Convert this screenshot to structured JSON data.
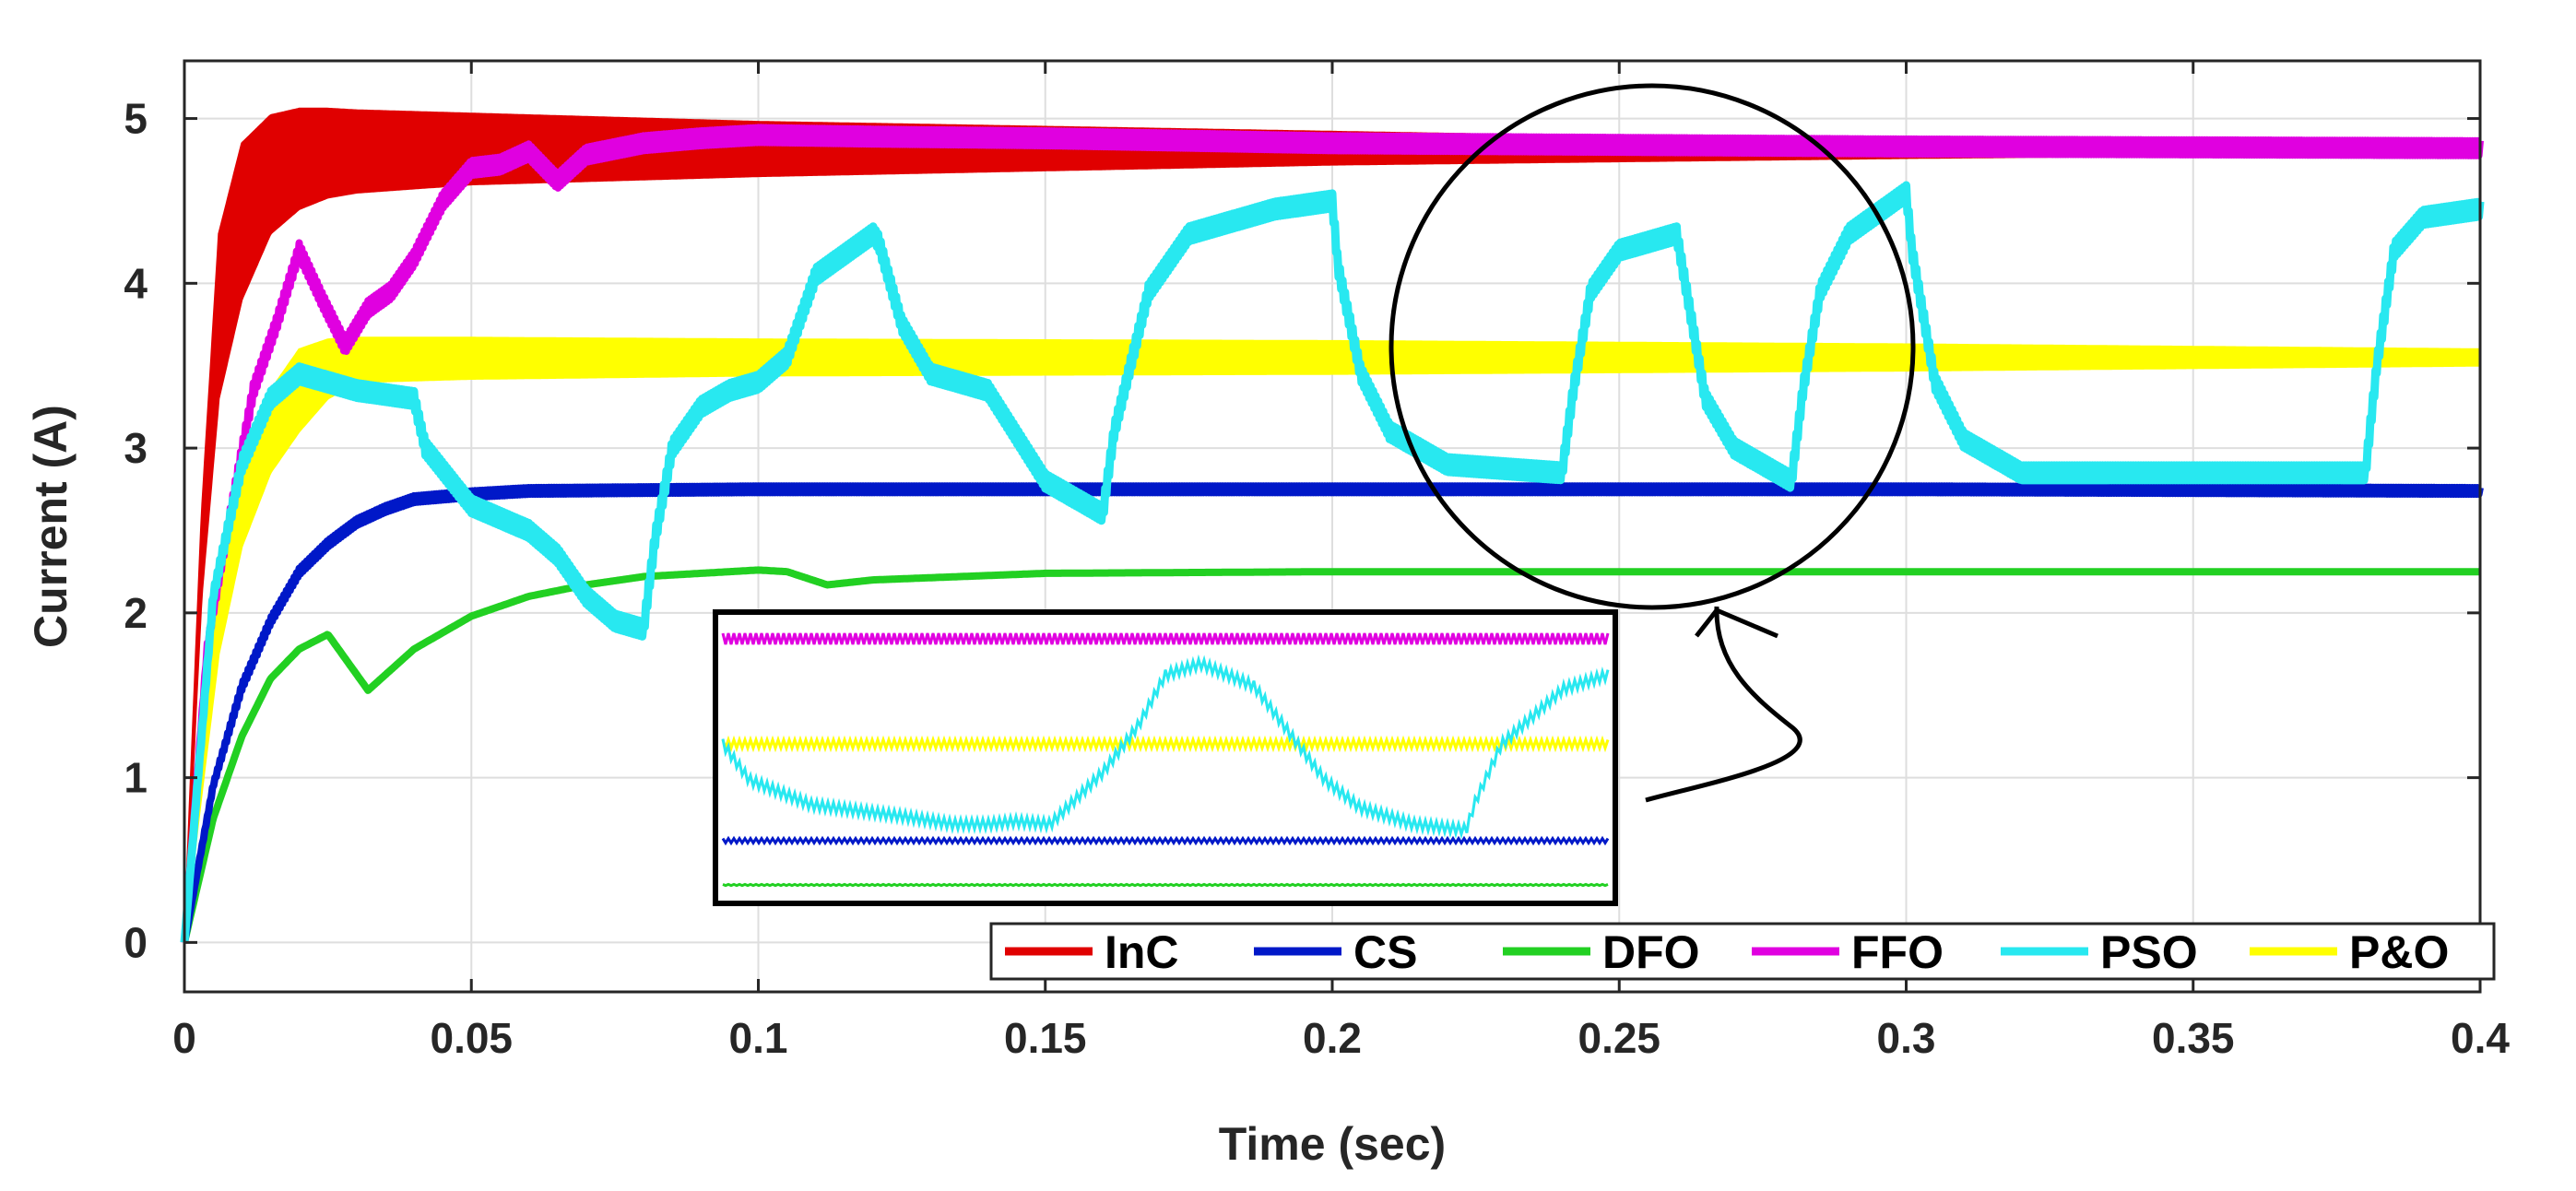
{
  "chart_data": {
    "type": "line",
    "title": "",
    "xlabel": "Time (sec)",
    "ylabel": "Current (A)",
    "xlim": [
      0,
      0.4
    ],
    "ylim": [
      -0.3,
      5.35
    ],
    "xticks": [
      0,
      0.05,
      0.1,
      0.15,
      0.2,
      0.25,
      0.3,
      0.35,
      0.4
    ],
    "xtick_labels": [
      "0",
      "0.05",
      "0.1",
      "0.15",
      "0.2",
      "0.25",
      "0.3",
      "0.35",
      "0.4"
    ],
    "yticks": [
      0,
      1,
      2,
      3,
      4,
      5
    ],
    "ytick_labels": [
      "0",
      "1",
      "2",
      "3",
      "4",
      "5"
    ],
    "grid": true,
    "legend_position": "bottom-right",
    "series": [
      {
        "name": "InC",
        "color": "#e00000",
        "band": true,
        "x": [
          0,
          0.003,
          0.006,
          0.01,
          0.015,
          0.02,
          0.025,
          0.03,
          0.05,
          0.1,
          0.2,
          0.3,
          0.4
        ],
        "upper": [
          0.05,
          2.6,
          4.3,
          4.85,
          5.02,
          5.06,
          5.06,
          5.05,
          5.03,
          4.98,
          4.92,
          4.86,
          4.83
        ],
        "lower": [
          0.0,
          2.1,
          3.3,
          3.9,
          4.3,
          4.45,
          4.52,
          4.55,
          4.6,
          4.65,
          4.72,
          4.76,
          4.79
        ]
      },
      {
        "name": "CS",
        "color": "#0018c8",
        "band": false,
        "x": [
          0,
          0.005,
          0.01,
          0.015,
          0.02,
          0.025,
          0.03,
          0.035,
          0.04,
          0.05,
          0.06,
          0.1,
          0.2,
          0.3,
          0.4
        ],
        "y": [
          0.0,
          0.95,
          1.55,
          1.95,
          2.25,
          2.42,
          2.55,
          2.63,
          2.69,
          2.72,
          2.74,
          2.75,
          2.75,
          2.75,
          2.74
        ]
      },
      {
        "name": "DFO",
        "color": "#22d022",
        "band": false,
        "x": [
          0,
          0.005,
          0.01,
          0.015,
          0.02,
          0.025,
          0.032,
          0.04,
          0.05,
          0.06,
          0.07,
          0.08,
          0.1,
          0.105,
          0.112,
          0.12,
          0.15,
          0.2,
          0.3,
          0.4
        ],
        "y": [
          0.0,
          0.75,
          1.25,
          1.6,
          1.78,
          1.87,
          1.53,
          1.78,
          1.98,
          2.1,
          2.17,
          2.22,
          2.26,
          2.25,
          2.17,
          2.2,
          2.24,
          2.25,
          2.25,
          2.25
        ]
      },
      {
        "name": "FFO",
        "color": "#e000e0",
        "band": false,
        "x": [
          0,
          0.004,
          0.008,
          0.012,
          0.016,
          0.02,
          0.024,
          0.028,
          0.032,
          0.036,
          0.04,
          0.045,
          0.05,
          0.055,
          0.06,
          0.065,
          0.07,
          0.08,
          0.09,
          0.1,
          0.12,
          0.15,
          0.2,
          0.3,
          0.4
        ],
        "y": [
          0.0,
          1.8,
          2.6,
          3.35,
          3.75,
          4.2,
          3.9,
          3.62,
          3.85,
          3.95,
          4.15,
          4.5,
          4.7,
          4.72,
          4.8,
          4.62,
          4.78,
          4.85,
          4.88,
          4.9,
          4.89,
          4.88,
          4.85,
          4.83,
          4.82
        ]
      },
      {
        "name": "PSO",
        "color": "#28e8f0",
        "band": false,
        "x": [
          0,
          0.005,
          0.01,
          0.015,
          0.02,
          0.025,
          0.03,
          0.04,
          0.042,
          0.05,
          0.06,
          0.065,
          0.07,
          0.075,
          0.08,
          0.082,
          0.085,
          0.09,
          0.095,
          0.1,
          0.105,
          0.11,
          0.12,
          0.121,
          0.125,
          0.13,
          0.14,
          0.15,
          0.16,
          0.162,
          0.168,
          0.175,
          0.19,
          0.2,
          0.201,
          0.205,
          0.21,
          0.22,
          0.24,
          0.242,
          0.245,
          0.25,
          0.26,
          0.262,
          0.265,
          0.27,
          0.28,
          0.282,
          0.285,
          0.29,
          0.3,
          0.301,
          0.305,
          0.31,
          0.32,
          0.38,
          0.382,
          0.385,
          0.39,
          0.4
        ],
        "y": [
          0.0,
          2.1,
          2.9,
          3.3,
          3.45,
          3.4,
          3.35,
          3.3,
          3.0,
          2.65,
          2.5,
          2.35,
          2.1,
          1.95,
          1.9,
          2.45,
          3.0,
          3.25,
          3.35,
          3.4,
          3.55,
          4.05,
          4.3,
          4.25,
          3.75,
          3.45,
          3.35,
          2.8,
          2.6,
          3.1,
          3.95,
          4.3,
          4.45,
          4.5,
          4.1,
          3.45,
          3.1,
          2.9,
          2.85,
          3.35,
          3.95,
          4.2,
          4.3,
          3.9,
          3.3,
          3.0,
          2.8,
          3.35,
          3.95,
          4.3,
          4.55,
          4.2,
          3.4,
          3.05,
          2.85,
          2.85,
          3.5,
          4.2,
          4.4,
          4.45
        ]
      },
      {
        "name": "P&O",
        "color": "#ffff00",
        "band": true,
        "x": [
          0,
          0.003,
          0.006,
          0.01,
          0.015,
          0.02,
          0.025,
          0.03,
          0.05,
          0.1,
          0.2,
          0.3,
          0.4
        ],
        "upper": [
          0.05,
          1.2,
          2.2,
          2.9,
          3.35,
          3.6,
          3.66,
          3.67,
          3.67,
          3.66,
          3.65,
          3.63,
          3.6
        ],
        "lower": [
          0.0,
          0.9,
          1.75,
          2.4,
          2.85,
          3.1,
          3.3,
          3.4,
          3.42,
          3.44,
          3.45,
          3.47,
          3.5
        ]
      }
    ],
    "annotations": {
      "zoom_circle": {
        "center_x": 0.25,
        "center_y": 3.7,
        "shape": "ellipse"
      },
      "inset": {
        "description": "zoomed view of 0.22-0.30 s region"
      },
      "arrow": "from circle to inset"
    },
    "inset_series": [
      {
        "name": "FFO",
        "color": "#e000e0",
        "level": 0.93,
        "ripple": 0.02
      },
      {
        "name": "P&O",
        "color": "#ffff00",
        "level": 0.55,
        "ripple": 0.015
      },
      {
        "name": "CS",
        "color": "#0018c8",
        "level": 0.2,
        "ripple": 0.008
      },
      {
        "name": "DFO",
        "color": "#22d022",
        "level": 0.04,
        "ripple": 0.002
      },
      {
        "name": "PSO",
        "color": "#28e8f0",
        "x": [
          0,
          0.03,
          0.1,
          0.2,
          0.24,
          0.26,
          0.3,
          0.33,
          0.37,
          0.43,
          0.47,
          0.5,
          0.54,
          0.6,
          0.68,
          0.72,
          0.78,
          0.84,
          0.85,
          0.88,
          0.95,
          1.0
        ],
        "y": [
          0.55,
          0.42,
          0.33,
          0.29,
          0.27,
          0.26,
          0.26,
          0.27,
          0.26,
          0.45,
          0.62,
          0.8,
          0.84,
          0.76,
          0.42,
          0.32,
          0.26,
          0.24,
          0.34,
          0.55,
          0.75,
          0.8
        ]
      }
    ]
  }
}
